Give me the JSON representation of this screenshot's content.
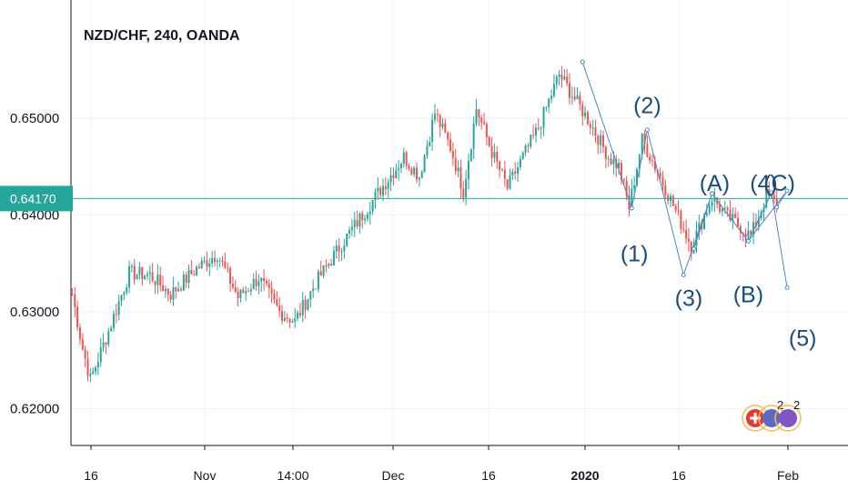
{
  "chart_data": {
    "type": "candlestick",
    "title": "NZD/CHF, 240, OANDA",
    "y_ticks": [
      {
        "value": 0.65,
        "label": "0.65000"
      },
      {
        "value": 0.64,
        "label": "0.64000"
      },
      {
        "value": 0.63,
        "label": "0.63000"
      },
      {
        "value": 0.62,
        "label": "0.62000"
      }
    ],
    "ylim": [
      0.6162,
      0.6622
    ],
    "x_ticks": [
      {
        "label": "16",
        "bold": false
      },
      {
        "label": "Nov",
        "bold": false
      },
      {
        "label": "14:00",
        "bold": false
      },
      {
        "label": "Dec",
        "bold": false
      },
      {
        "label": "16",
        "bold": false
      },
      {
        "label": "2020",
        "bold": true
      },
      {
        "label": "16",
        "bold": false
      },
      {
        "label": "Feb",
        "bold": false
      }
    ],
    "current_price": {
      "value": 0.6417,
      "label": "0.64170",
      "color": "#26a69a"
    },
    "anchors": [
      {
        "i": 0,
        "p": 0.6318
      },
      {
        "i": 4,
        "p": 0.6262
      },
      {
        "i": 7,
        "p": 0.623
      },
      {
        "i": 14,
        "p": 0.628
      },
      {
        "i": 22,
        "p": 0.634
      },
      {
        "i": 30,
        "p": 0.6338
      },
      {
        "i": 38,
        "p": 0.6318
      },
      {
        "i": 48,
        "p": 0.6345
      },
      {
        "i": 56,
        "p": 0.636
      },
      {
        "i": 64,
        "p": 0.6315
      },
      {
        "i": 72,
        "p": 0.6335
      },
      {
        "i": 80,
        "p": 0.63
      },
      {
        "i": 86,
        "p": 0.629
      },
      {
        "i": 94,
        "p": 0.633
      },
      {
        "i": 104,
        "p": 0.637
      },
      {
        "i": 112,
        "p": 0.64
      },
      {
        "i": 120,
        "p": 0.643
      },
      {
        "i": 128,
        "p": 0.646
      },
      {
        "i": 134,
        "p": 0.644
      },
      {
        "i": 140,
        "p": 0.6505
      },
      {
        "i": 146,
        "p": 0.647
      },
      {
        "i": 151,
        "p": 0.6425
      },
      {
        "i": 156,
        "p": 0.651
      },
      {
        "i": 162,
        "p": 0.6465
      },
      {
        "i": 168,
        "p": 0.6428
      },
      {
        "i": 174,
        "p": 0.646
      },
      {
        "i": 180,
        "p": 0.649
      },
      {
        "i": 188,
        "p": 0.6545
      },
      {
        "i": 194,
        "p": 0.652
      },
      {
        "i": 200,
        "p": 0.6495
      },
      {
        "i": 207,
        "p": 0.646
      },
      {
        "i": 211,
        "p": 0.645
      },
      {
        "i": 215,
        "p": 0.6408
      },
      {
        "i": 220,
        "p": 0.6478
      },
      {
        "i": 226,
        "p": 0.6445
      },
      {
        "i": 232,
        "p": 0.641
      },
      {
        "i": 239,
        "p": 0.6368
      },
      {
        "i": 247,
        "p": 0.6418
      },
      {
        "i": 253,
        "p": 0.6398
      },
      {
        "i": 258,
        "p": 0.6388
      },
      {
        "i": 262,
        "p": 0.6378
      },
      {
        "i": 268,
        "p": 0.642
      },
      {
        "i": 272,
        "p": 0.6412
      }
    ],
    "wave_points": [
      {
        "i": 197,
        "p": 0.6558
      },
      {
        "i": 216,
        "p": 0.6407
      },
      {
        "i": 222,
        "p": 0.6488
      },
      {
        "i": 236,
        "p": 0.6338
      },
      {
        "i": 247,
        "p": 0.6422
      },
      {
        "i": 261,
        "p": 0.6373
      },
      {
        "i": 270,
        "p": 0.6423
      },
      {
        "i": 276,
        "p": 0.6325
      }
    ],
    "abc_points": [
      {
        "i": 240,
        "p": 0.6365
      },
      {
        "i": 247,
        "p": 0.6422
      },
      {
        "i": 261,
        "p": 0.6373
      },
      {
        "i": 276,
        "p": 0.6425
      },
      {
        "i": 272,
        "p": 0.6408
      }
    ],
    "wave_labels": [
      {
        "text": "(2)",
        "i": 222,
        "p": 0.6505
      },
      {
        "text": "(1)",
        "i": 217,
        "p": 0.6352
      },
      {
        "text": "(A)",
        "i": 248,
        "p": 0.6425
      },
      {
        "text": "(4)",
        "i": 267,
        "p": 0.6425
      },
      {
        "text": "(C)",
        "i": 273,
        "p": 0.6425
      },
      {
        "text": "(3)",
        "i": 238,
        "p": 0.6306
      },
      {
        "text": "(B)",
        "i": 261,
        "p": 0.631
      },
      {
        "text": "(5)",
        "i": 282,
        "p": 0.6265
      }
    ],
    "events": [
      {
        "icon": "swiss-flag-icon",
        "label": "",
        "color": "#e53935"
      },
      {
        "icon": "event-icon",
        "label": "2",
        "color": "#5c6bc0"
      },
      {
        "icon": "event-icon",
        "label": "2",
        "color": "#7e57c2"
      }
    ],
    "colors": {
      "up": "#26a69a",
      "down": "#ef5350",
      "wave": "#4a89c8",
      "grid": "#f0f3fa"
    },
    "grid": true
  }
}
